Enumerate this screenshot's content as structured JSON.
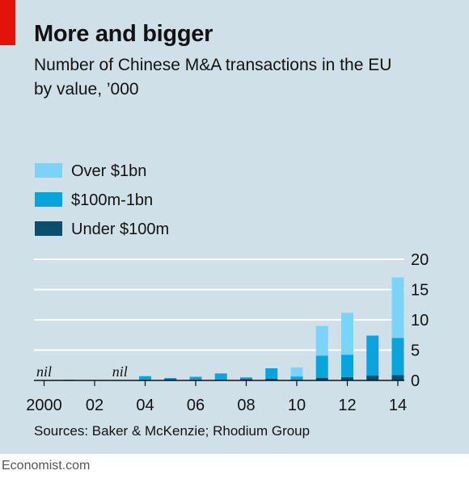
{
  "title": "More and bigger",
  "subtitle": "Number of Chinese M&A transactions in the EU by value, ’000",
  "source": "Sources: Baker & McKenzie; Rhodium Group",
  "brand": "Economist.com",
  "chart_data": {
    "type": "bar",
    "stacked": true,
    "categories": [
      "2000",
      "01",
      "02",
      "03",
      "04",
      "05",
      "06",
      "07",
      "08",
      "09",
      "10",
      "11",
      "12",
      "13",
      "14"
    ],
    "x_tick_labels": [
      "2000",
      "02",
      "04",
      "06",
      "08",
      "10",
      "12",
      "14"
    ],
    "series": [
      {
        "name": "Under $100m",
        "color": "#0b4f6c",
        "values": [
          0,
          0.1,
          0.05,
          0,
          0.15,
          0.2,
          0.15,
          0.15,
          0.2,
          0.3,
          0.15,
          0.4,
          0.55,
          0.8,
          0.9
        ]
      },
      {
        "name": "$100m-1bn",
        "color": "#0aa4dc",
        "values": [
          0,
          0,
          0,
          0,
          0.55,
          0.2,
          0.45,
          1.0,
          0.3,
          1.7,
          0.5,
          3.7,
          3.7,
          6.6,
          6.1
        ]
      },
      {
        "name": "Over $1bn",
        "color": "#7bd3f7",
        "values": [
          0,
          0,
          0,
          0,
          0,
          0,
          0,
          0,
          0,
          0,
          1.5,
          4.9,
          6.9,
          0,
          10.0
        ]
      }
    ],
    "annotations": [
      {
        "category": "2000",
        "text": "nil"
      },
      {
        "category": "03",
        "text": "nil"
      }
    ],
    "ylim": [
      0,
      20
    ],
    "yticks": [
      0,
      5,
      10,
      15,
      20
    ],
    "y_axis_position": "right",
    "grid": true,
    "legend_position": "top-left"
  }
}
